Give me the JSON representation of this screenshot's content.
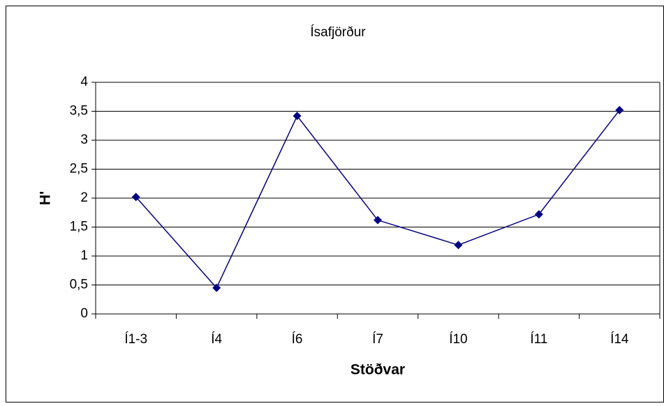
{
  "chart_data": {
    "type": "line",
    "title": "Ísafjörður",
    "xlabel": "Stöðvar",
    "ylabel": "H'",
    "categories": [
      "Í1-3",
      "Í4",
      "Í6",
      "Í7",
      "Í10",
      "Í11",
      "Í14"
    ],
    "values": [
      2.02,
      0.45,
      3.42,
      1.62,
      1.19,
      1.72,
      3.52
    ],
    "color": "#000080",
    "ylim": [
      0,
      4
    ],
    "yticks": [
      0,
      {
        "value": 0.5,
        "label": "0,5"
      },
      1,
      {
        "value": 1.5,
        "label": "1,5"
      },
      2,
      {
        "value": 2.5,
        "label": "2,5"
      },
      3,
      {
        "value": 3.5,
        "label": "3,5"
      },
      4
    ],
    "grid": true
  }
}
